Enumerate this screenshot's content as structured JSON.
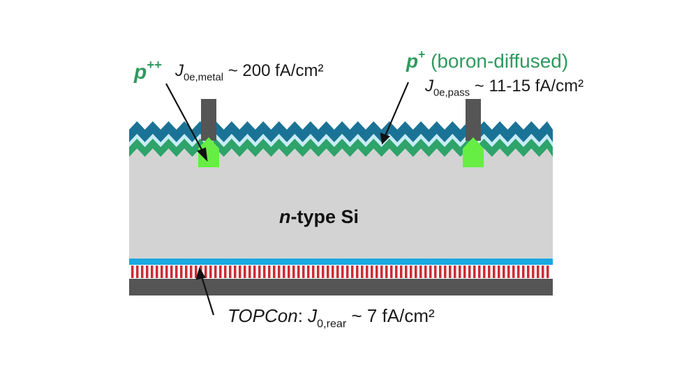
{
  "diagram": {
    "label_p_plusplus_base": "p",
    "label_p_plusplus_sup": "++",
    "label_metal_J": "J",
    "label_metal_sub": "0e,metal",
    "label_metal_value": " ~ 200 fA/cm²",
    "label_p_plus_base": "p",
    "label_p_plus_sup": "+",
    "label_p_plus_desc": " (boron-diffused)",
    "label_pass_J": "J",
    "label_pass_sub": "0e,pass",
    "label_pass_value": " ~ 11-15 fA/cm²",
    "label_bulk_italic": "n",
    "label_bulk_rest": "-type Si",
    "label_topcon_name": "TOPCon",
    "label_topcon_colon": ": ",
    "label_topcon_J": "J",
    "label_topcon_sub": "0,rear",
    "label_topcon_value": " ~ 7 fA/cm²"
  },
  "colors": {
    "bulk": "#d3d3d3",
    "zigzag_dark": "#1a7396",
    "zigzag_light": "#c8ecf6",
    "zigzag_green": "#2ea36a",
    "contact_metal": "#555555",
    "p_plusplus_region": "#66ee44",
    "rear_blue": "#19a8e0",
    "rear_red": "#cc2a33",
    "rear_metal": "#555555",
    "label_green": "#2e9a5e"
  }
}
